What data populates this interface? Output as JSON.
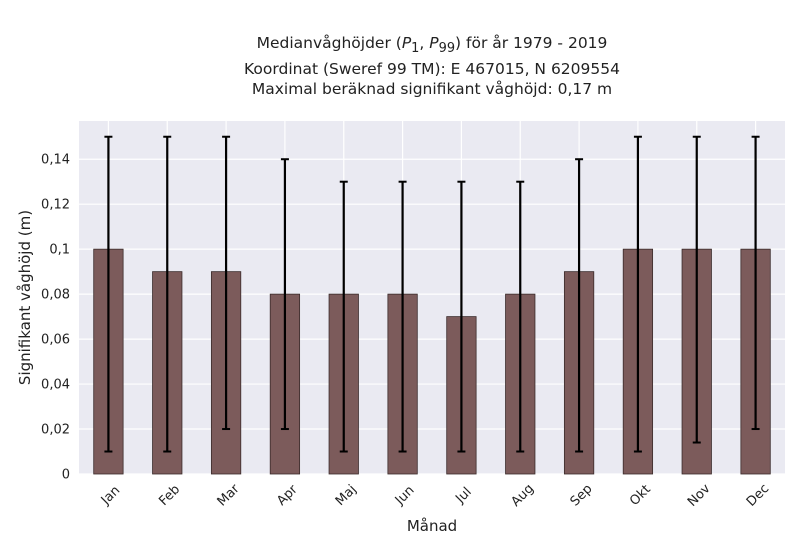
{
  "chart_data": {
    "type": "bar",
    "title_lines": [
      "Medianvåghöjder (P1, P99) för år 1979 - 2019",
      "Koordinat (Sweref 99 TM): E 467015, N 6209554",
      "Maximal beräknad signifikant våghöjd: 0,17 m"
    ],
    "xlabel": "Månad",
    "ylabel": "Signifikant våghöjd (m)",
    "categories": [
      "Jan",
      "Feb",
      "Mar",
      "Apr",
      "Maj",
      "Jun",
      "Jul",
      "Aug",
      "Sep",
      "Okt",
      "Nov",
      "Dec"
    ],
    "series": [
      {
        "values": [
          0.1,
          0.09,
          0.09,
          0.08,
          0.08,
          0.08,
          0.07,
          0.08,
          0.09,
          0.1,
          0.1,
          0.1
        ],
        "p1": [
          0.01,
          0.01,
          0.02,
          0.02,
          0.01,
          0.01,
          0.01,
          0.01,
          0.01,
          0.01,
          0.014,
          0.02
        ],
        "p99": [
          0.15,
          0.15,
          0.15,
          0.14,
          0.13,
          0.13,
          0.13,
          0.13,
          0.14,
          0.15,
          0.15,
          0.15
        ]
      }
    ],
    "ylim": [
      0,
      0.157
    ],
    "yticks": [
      0,
      0.02,
      0.04,
      0.06,
      0.08,
      0.1,
      0.12,
      0.14
    ],
    "ytick_labels": [
      "0",
      "0,02",
      "0,04",
      "0,06",
      "0,08",
      "0,1",
      "0,12",
      "0,14"
    ],
    "grid": true,
    "colors": {
      "bar": "#7c5b5b",
      "bar_edge": "#3a2a2a",
      "errorbar": "#000000",
      "plot_background": "#eaeaf2",
      "grid": "#ffffff"
    }
  }
}
